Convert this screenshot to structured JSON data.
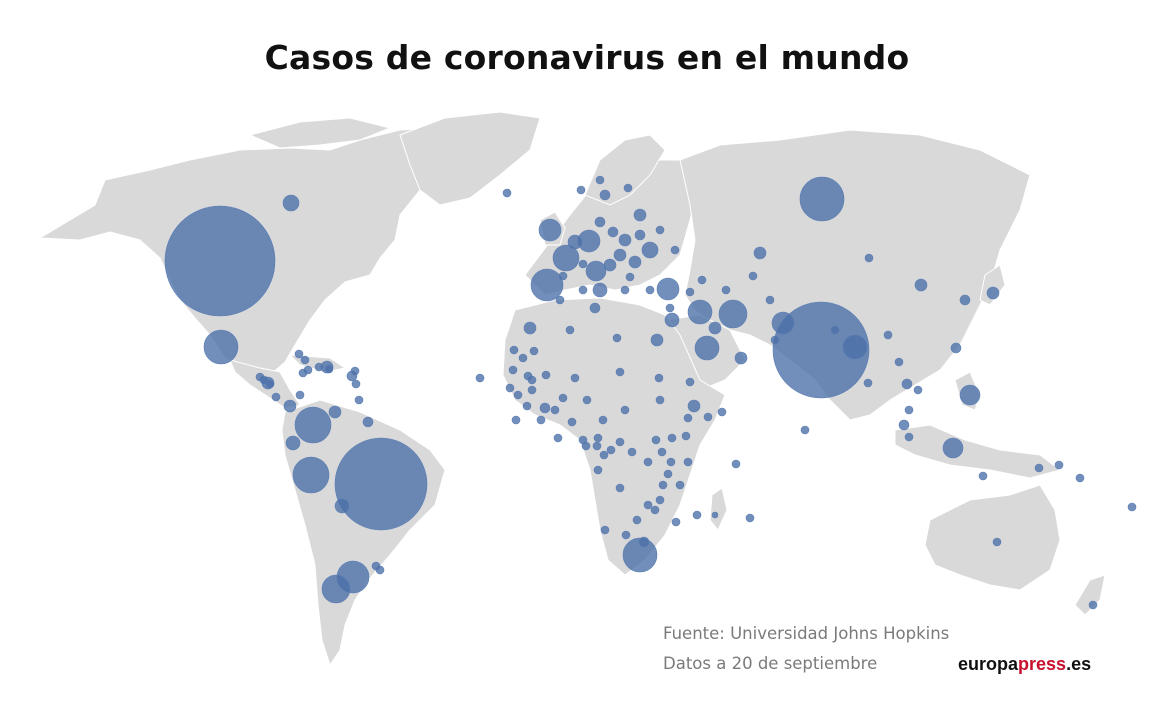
{
  "title": "Casos de coronavirus en el mundo",
  "source_line": "Fuente: Universidad Johns Hopkins",
  "date_line": "Datos a 20 de septiembre",
  "brand": {
    "prefix": "europa",
    "accent": "press",
    "suffix": ".es"
  },
  "colors": {
    "land": "#d9d9d9",
    "bubble": "#4a6fa8",
    "brand_accent": "#c8102e"
  },
  "map_data": {
    "metric": "coronavirus cases",
    "marker_style": "proportional circles",
    "large_markers": [
      {
        "region": "United States",
        "relative_size": 1.0
      },
      {
        "region": "India",
        "relative_size": 0.93
      },
      {
        "region": "Brazil",
        "relative_size": 0.86
      },
      {
        "region": "Russia",
        "relative_size": 0.43
      },
      {
        "region": "Peru",
        "relative_size": 0.36
      },
      {
        "region": "Colombia",
        "relative_size": 0.36
      },
      {
        "region": "Mexico",
        "relative_size": 0.34
      },
      {
        "region": "South Africa",
        "relative_size": 0.33
      },
      {
        "region": "Spain",
        "relative_size": 0.31
      },
      {
        "region": "Argentina",
        "relative_size": 0.32
      },
      {
        "region": "Chile",
        "relative_size": 0.28
      },
      {
        "region": "Iran",
        "relative_size": 0.27
      }
    ]
  }
}
